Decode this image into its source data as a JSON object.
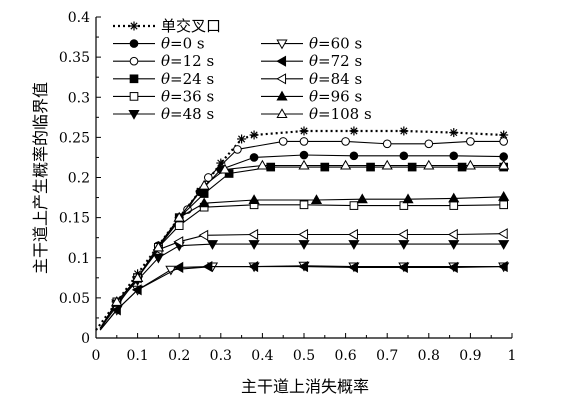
{
  "chart_data": {
    "type": "line",
    "xlabel": "主干道上消失概率",
    "ylabel": "主干道上产生概率的临界值",
    "xlim": [
      0,
      1
    ],
    "ylim": [
      0,
      0.4
    ],
    "xticks": [
      0,
      0.1,
      0.2,
      0.3,
      0.4,
      0.5,
      0.6,
      0.7,
      0.8,
      0.9,
      1
    ],
    "xtick_labels": [
      "0",
      "0.1",
      "0.2",
      "0.3",
      "0.4",
      "0.5",
      "0.6",
      "0.7",
      "0.8",
      "0.9",
      "1"
    ],
    "yticks": [
      0,
      0.05,
      0.1,
      0.15,
      0.2,
      0.25,
      0.3,
      0.35,
      0.4
    ],
    "ytick_labels": [
      "0",
      "0.05",
      "0.1",
      "0.15",
      "0.2",
      "0.25",
      "0.3",
      "0.35",
      "0.4"
    ],
    "grid": false,
    "legend_position": "top-left",
    "legend_columns": 2,
    "series": [
      {
        "name": "单交叉口",
        "theta_label": "",
        "marker": "asterisk",
        "line": "dotted",
        "x": [
          0,
          0.05,
          0.1,
          0.15,
          0.2,
          0.25,
          0.3,
          0.35,
          0.38,
          0.5,
          0.62,
          0.74,
          0.86,
          0.98
        ],
        "y": [
          0.01,
          0.045,
          0.08,
          0.115,
          0.15,
          0.183,
          0.218,
          0.248,
          0.253,
          0.258,
          0.258,
          0.258,
          0.256,
          0.253
        ]
      },
      {
        "name": "",
        "theta_label": "=0 s",
        "marker": "filled-circle",
        "line": "solid",
        "x": [
          0.01,
          0.05,
          0.1,
          0.15,
          0.2,
          0.25,
          0.3,
          0.38,
          0.5,
          0.62,
          0.74,
          0.86,
          0.98
        ],
        "y": [
          0.01,
          0.045,
          0.075,
          0.115,
          0.15,
          0.182,
          0.21,
          0.225,
          0.228,
          0.227,
          0.227,
          0.227,
          0.226
        ]
      },
      {
        "name": "",
        "theta_label": "=12 s",
        "marker": "open-circle",
        "line": "solid",
        "x": [
          0.01,
          0.1,
          0.15,
          0.22,
          0.27,
          0.34,
          0.45,
          0.5,
          0.6,
          0.7,
          0.8,
          0.9,
          0.98
        ],
        "y": [
          0.012,
          0.075,
          0.113,
          0.16,
          0.2,
          0.235,
          0.245,
          0.245,
          0.245,
          0.242,
          0.242,
          0.245,
          0.245
        ]
      },
      {
        "name": "",
        "theta_label": "=24 s",
        "marker": "filled-square",
        "line": "solid",
        "x": [
          0.01,
          0.05,
          0.1,
          0.15,
          0.2,
          0.26,
          0.32,
          0.42,
          0.55,
          0.66,
          0.76,
          0.88,
          0.98
        ],
        "y": [
          0.012,
          0.045,
          0.075,
          0.113,
          0.15,
          0.18,
          0.205,
          0.213,
          0.213,
          0.213,
          0.213,
          0.213,
          0.213
        ]
      },
      {
        "name": "",
        "theta_label": "=36 s",
        "marker": "open-square",
        "line": "solid",
        "x": [
          0.01,
          0.05,
          0.1,
          0.15,
          0.2,
          0.26,
          0.38,
          0.5,
          0.62,
          0.74,
          0.86,
          0.98
        ],
        "y": [
          0.012,
          0.045,
          0.075,
          0.113,
          0.14,
          0.163,
          0.166,
          0.166,
          0.165,
          0.165,
          0.165,
          0.166
        ]
      },
      {
        "name": "",
        "theta_label": "=48 s",
        "marker": "filled-triangle-down",
        "line": "solid",
        "x": [
          0.01,
          0.05,
          0.1,
          0.15,
          0.2,
          0.28,
          0.38,
          0.5,
          0.62,
          0.74,
          0.86,
          0.98
        ],
        "y": [
          0.012,
          0.043,
          0.072,
          0.1,
          0.115,
          0.117,
          0.117,
          0.117,
          0.117,
          0.117,
          0.117,
          0.117
        ]
      },
      {
        "name": "",
        "theta_label": "=60 s",
        "marker": "open-triangle-down",
        "line": "solid",
        "x": [
          0.01,
          0.05,
          0.1,
          0.18,
          0.28,
          0.38,
          0.5,
          0.62,
          0.74,
          0.86,
          0.98
        ],
        "y": [
          0.01,
          0.035,
          0.06,
          0.085,
          0.089,
          0.089,
          0.09,
          0.089,
          0.089,
          0.089,
          0.089
        ]
      },
      {
        "name": "",
        "theta_label": "=72 s",
        "marker": "filled-triangle-left",
        "line": "solid",
        "x": [
          0.01,
          0.05,
          0.1,
          0.2,
          0.27,
          0.38,
          0.5,
          0.62,
          0.74,
          0.86,
          0.98
        ],
        "y": [
          0.01,
          0.035,
          0.06,
          0.088,
          0.089,
          0.089,
          0.089,
          0.088,
          0.088,
          0.088,
          0.089
        ]
      },
      {
        "name": "",
        "theta_label": "=84 s",
        "marker": "open-triangle-left",
        "line": "solid",
        "x": [
          0.01,
          0.05,
          0.1,
          0.15,
          0.2,
          0.26,
          0.38,
          0.5,
          0.62,
          0.74,
          0.86,
          0.98
        ],
        "y": [
          0.012,
          0.045,
          0.075,
          0.11,
          0.12,
          0.128,
          0.129,
          0.129,
          0.129,
          0.129,
          0.129,
          0.13
        ]
      },
      {
        "name": "",
        "theta_label": "=96 s",
        "marker": "filled-triangle-up",
        "line": "solid",
        "x": [
          0.01,
          0.05,
          0.1,
          0.15,
          0.2,
          0.26,
          0.38,
          0.53,
          0.64,
          0.75,
          0.86,
          0.98
        ],
        "y": [
          0.012,
          0.045,
          0.075,
          0.113,
          0.15,
          0.168,
          0.172,
          0.172,
          0.173,
          0.173,
          0.174,
          0.176
        ]
      },
      {
        "name": "",
        "theta_label": "=108 s",
        "marker": "open-triangle-up",
        "line": "solid",
        "x": [
          0.01,
          0.05,
          0.1,
          0.15,
          0.2,
          0.26,
          0.31,
          0.4,
          0.5,
          0.6,
          0.7,
          0.8,
          0.9,
          0.98
        ],
        "y": [
          0.012,
          0.045,
          0.075,
          0.113,
          0.15,
          0.19,
          0.21,
          0.215,
          0.215,
          0.215,
          0.215,
          0.215,
          0.215,
          0.215
        ]
      }
    ]
  }
}
